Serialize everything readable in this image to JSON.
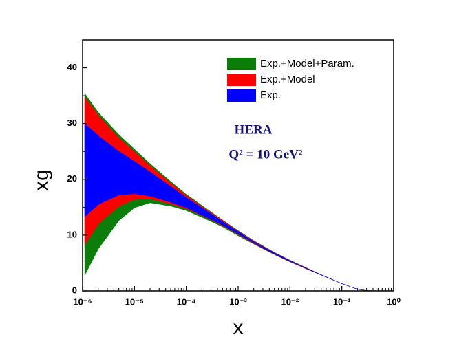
{
  "chart_data": {
    "type": "band",
    "xlabel": "x",
    "ylabel": "xg",
    "annotations": [
      "HERA",
      "Q² = 10 GeV²"
    ],
    "log_x": true,
    "xlim": [
      1e-06,
      1
    ],
    "ylim": [
      0,
      45
    ],
    "xticks": [
      {
        "value": 1e-06,
        "label": "10⁻⁶"
      },
      {
        "value": 1e-05,
        "label": "10⁻⁵"
      },
      {
        "value": 0.0001,
        "label": "10⁻⁴"
      },
      {
        "value": 0.001,
        "label": "10⁻³"
      },
      {
        "value": 0.01,
        "label": "10⁻²"
      },
      {
        "value": 0.1,
        "label": "10⁻¹"
      },
      {
        "value": 1,
        "label": "10⁰"
      }
    ],
    "yticks": [
      0,
      10,
      20,
      30,
      40
    ],
    "legend": "upper right",
    "x": [
      1.1e-06,
      2e-06,
      5e-06,
      1e-05,
      2e-05,
      5e-05,
      0.0001,
      0.0002,
      0.0005,
      0.001,
      0.002,
      0.005,
      0.01,
      0.02,
      0.04,
      0.1,
      0.2,
      0.3,
      0.5,
      1
    ],
    "series": [
      {
        "name": "Exp.+Model+Param.",
        "color": "#0b7d0b",
        "upper": [
          35.4,
          32.0,
          28.0,
          25.4,
          22.8,
          19.6,
          17.3,
          15.3,
          12.7,
          10.8,
          9.0,
          6.9,
          5.5,
          4.2,
          2.9,
          1.3,
          0.3,
          0.05,
          0,
          0
        ],
        "lower": [
          2.8,
          7.5,
          12.6,
          14.9,
          15.8,
          15.2,
          14.4,
          13.2,
          11.5,
          9.9,
          8.4,
          6.5,
          5.2,
          4.0,
          2.85,
          1.3,
          0.3,
          0.05,
          0,
          0
        ]
      },
      {
        "name": "Exp.+Model",
        "color": "#ff0000",
        "upper": [
          34.7,
          31.4,
          27.4,
          24.9,
          22.4,
          19.3,
          17.1,
          15.1,
          12.6,
          10.7,
          8.9,
          6.85,
          5.45,
          4.15,
          2.9,
          1.3,
          0.3,
          0.05,
          0,
          0
        ],
        "lower": [
          8.3,
          12.0,
          15.2,
          16.4,
          16.5,
          15.6,
          14.7,
          13.5,
          11.7,
          10.1,
          8.5,
          6.55,
          5.25,
          4.0,
          2.85,
          1.3,
          0.3,
          0.05,
          0,
          0
        ]
      },
      {
        "name": "Exp.",
        "color": "#0000ff",
        "upper": [
          30.0,
          27.8,
          25.0,
          23.2,
          21.3,
          18.7,
          16.7,
          14.9,
          12.4,
          10.6,
          8.8,
          6.8,
          5.4,
          4.1,
          2.9,
          1.3,
          0.3,
          0.05,
          0,
          0
        ],
        "lower": [
          13.3,
          15.5,
          17.2,
          17.4,
          17.0,
          15.9,
          14.9,
          13.6,
          11.8,
          10.2,
          8.6,
          6.6,
          5.3,
          4.05,
          2.85,
          1.3,
          0.3,
          0.05,
          0,
          0
        ]
      }
    ]
  }
}
